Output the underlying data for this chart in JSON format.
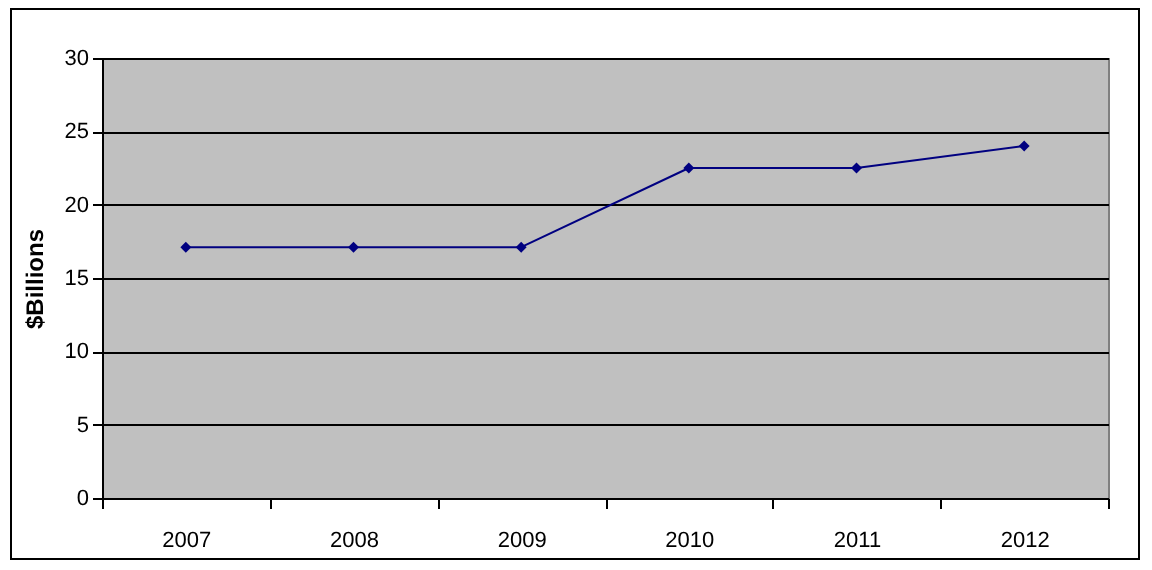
{
  "chart_data": {
    "type": "line",
    "ylabel": "$Billions",
    "categories": [
      "2007",
      "2008",
      "2009",
      "2010",
      "2011",
      "2012"
    ],
    "series": [
      {
        "color": "#000080",
        "values": [
          17.1,
          17.1,
          17.1,
          22.5,
          22.5,
          24
        ]
      }
    ],
    "ylim": [
      0,
      30
    ],
    "yticks": [
      0,
      5,
      10,
      15,
      20,
      25,
      30
    ],
    "grid": "y",
    "marker": "diamond",
    "line_style": "solid"
  }
}
